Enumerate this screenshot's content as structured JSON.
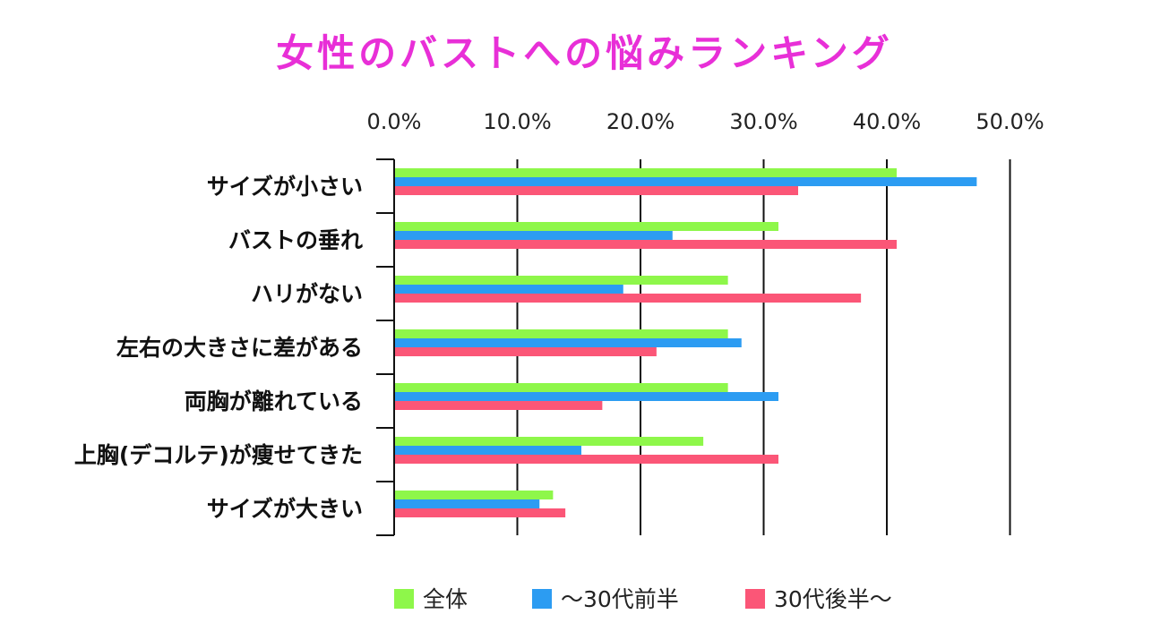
{
  "chart_data": {
    "type": "bar",
    "orientation": "horizontal",
    "title": "女性のバストへの悩みランキング",
    "categories": [
      "サイズが小さい",
      "バストの垂れ",
      "ハリがない",
      "左右の大きさに差がある",
      "両胸が離れている",
      "上胸(デコルテ)が痩せてきた",
      "サイズが大きい"
    ],
    "series": [
      {
        "name": "全体",
        "color": "#8ef74a",
        "values": [
          40.8,
          31.2,
          27.1,
          27.1,
          27.1,
          25.1,
          12.9
        ]
      },
      {
        "name": "〜30代前半",
        "color": "#2c9cf2",
        "values": [
          47.3,
          22.6,
          18.6,
          28.2,
          31.2,
          15.2,
          11.8
        ]
      },
      {
        "name": "30代後半〜",
        "color": "#fb5677",
        "values": [
          32.8,
          40.8,
          37.9,
          21.3,
          16.9,
          31.2,
          13.9
        ]
      }
    ],
    "x_ticks": [
      "0.0%",
      "10.0%",
      "20.0%",
      "30.0%",
      "40.0%",
      "50.0%"
    ],
    "xlim": [
      0,
      50
    ],
    "grid": true,
    "legend_position": "bottom"
  }
}
